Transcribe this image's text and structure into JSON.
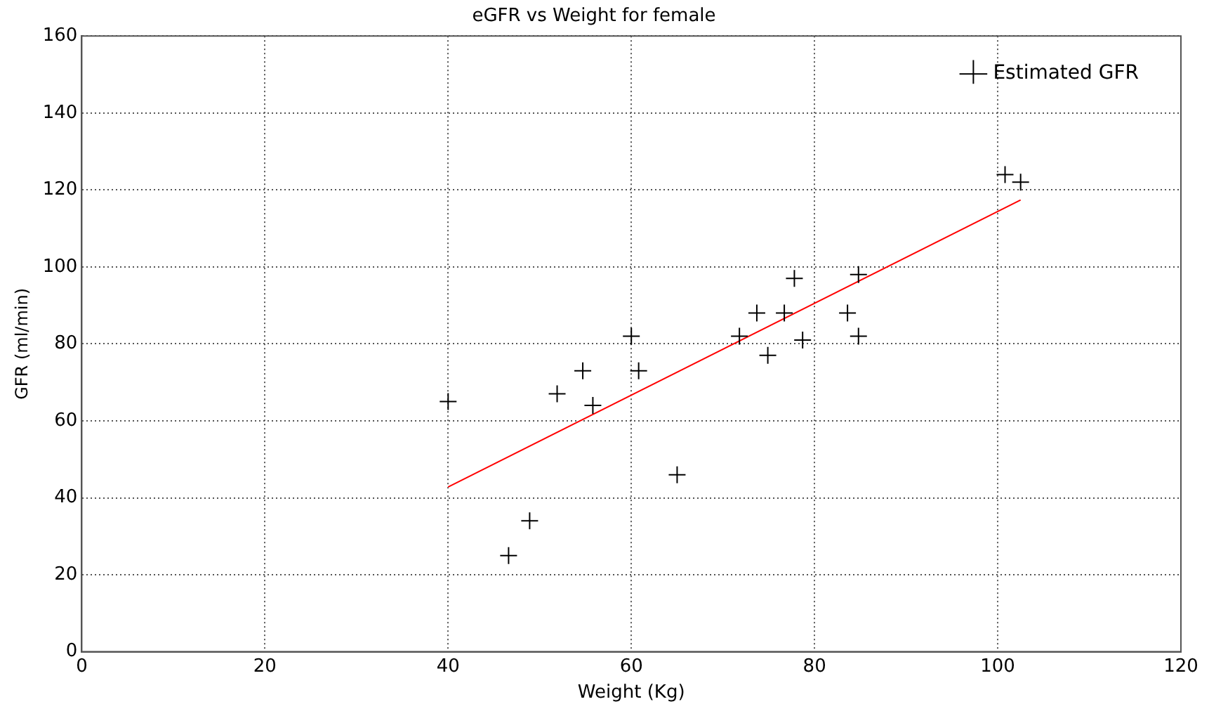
{
  "chart_data": {
    "type": "scatter",
    "title": "eGFR vs Weight for female",
    "xlabel": "Weight (Kg)",
    "ylabel": "GFR (ml/min)",
    "series": [
      {
        "name": "Estimated GFR",
        "color": "#000000",
        "marker": "cross",
        "x": [
          40,
          46.6,
          48.9,
          51.9,
          54.7,
          55.8,
          60,
          60.8,
          65,
          71.8,
          73.7,
          74.9,
          76.7,
          77.8,
          78.7,
          83.6,
          84.8,
          84.8,
          100.8,
          102.5
        ],
        "values": [
          65,
          25,
          34,
          67,
          73,
          64,
          82,
          73,
          46,
          82,
          88,
          77,
          88,
          97,
          81,
          88,
          98,
          82,
          124,
          122
        ]
      },
      {
        "type": "line",
        "color": "#ff0000",
        "marker": "none",
        "x": [
          40,
          102.5
        ],
        "values": [
          42.8,
          117.4
        ]
      }
    ],
    "xlim": [
      0,
      120
    ],
    "xticks": [
      0,
      20,
      40,
      60,
      80,
      100,
      120
    ],
    "ylim": [
      0,
      160
    ],
    "yticks": [
      0,
      20,
      40,
      60,
      80,
      100,
      120,
      140,
      160
    ],
    "grid": true,
    "legend": "top right"
  }
}
